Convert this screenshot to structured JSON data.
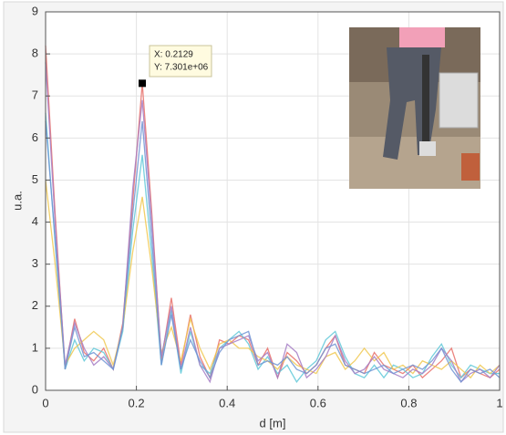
{
  "chart_data": {
    "type": "line",
    "xlabel": "d [m]",
    "ylabel": "u.a.",
    "x": [
      0,
      0.021,
      0.043,
      0.064,
      0.085,
      0.106,
      0.128,
      0.149,
      0.17,
      0.192,
      0.213,
      0.234,
      0.255,
      0.277,
      0.298,
      0.319,
      0.34,
      0.362,
      0.383,
      0.404,
      0.426,
      0.447,
      0.468,
      0.489,
      0.511,
      0.532,
      0.553,
      0.575,
      0.596,
      0.617,
      0.638,
      0.66,
      0.681,
      0.702,
      0.724,
      0.745,
      0.766,
      0.787,
      0.809,
      0.83,
      0.851,
      0.872,
      0.894,
      0.915,
      0.936,
      0.957,
      0.979,
      1.0
    ],
    "series": [
      {
        "color": "#e8706a",
        "values": [
          8.2,
          4.2,
          0.5,
          1.7,
          0.9,
          0.7,
          1.0,
          0.5,
          1.6,
          4.5,
          7.3,
          4.2,
          0.7,
          2.2,
          0.6,
          1.8,
          0.8,
          0.3,
          1.2,
          1.1,
          1.3,
          1.2,
          0.6,
          1.0,
          0.3,
          0.9,
          0.7,
          0.4,
          0.6,
          1.0,
          1.3,
          0.6,
          0.5,
          0.4,
          0.9,
          0.6,
          0.5,
          0.4,
          0.6,
          0.3,
          0.5,
          0.7,
          1.0,
          0.3,
          0.5,
          0.4,
          0.3,
          0.5
        ]
      },
      {
        "color": "#5fc8d8",
        "values": [
          6.6,
          3.5,
          0.5,
          1.2,
          0.7,
          1.0,
          0.9,
          0.5,
          1.4,
          3.8,
          5.6,
          3.2,
          0.6,
          1.9,
          0.4,
          1.4,
          0.6,
          0.4,
          1.0,
          1.2,
          1.4,
          1.1,
          0.5,
          0.8,
          0.4,
          0.6,
          0.2,
          0.5,
          0.7,
          1.2,
          1.4,
          0.8,
          0.4,
          0.3,
          0.6,
          0.3,
          0.6,
          0.5,
          0.3,
          0.4,
          0.8,
          1.1,
          0.6,
          0.3,
          0.6,
          0.5,
          0.4,
          0.4
        ]
      },
      {
        "color": "#f0c850",
        "values": [
          5.0,
          3.0,
          0.6,
          1.0,
          1.2,
          1.4,
          1.2,
          0.6,
          1.5,
          3.3,
          4.6,
          2.9,
          0.9,
          1.5,
          0.7,
          1.7,
          1.0,
          0.5,
          1.1,
          1.2,
          1.0,
          1.0,
          0.8,
          0.7,
          0.5,
          0.8,
          0.6,
          0.5,
          0.4,
          0.8,
          0.9,
          0.5,
          0.7,
          1.0,
          0.7,
          0.9,
          0.5,
          0.6,
          0.4,
          0.7,
          0.6,
          0.5,
          0.7,
          0.5,
          0.3,
          0.6,
          0.4,
          0.6
        ]
      },
      {
        "color": "#a47cc4",
        "values": [
          7.8,
          4.0,
          0.6,
          1.6,
          1.0,
          0.6,
          0.8,
          0.5,
          1.5,
          4.8,
          6.9,
          4.0,
          0.8,
          2.0,
          0.5,
          1.5,
          0.6,
          0.2,
          1.0,
          1.1,
          1.2,
          1.3,
          0.7,
          0.9,
          0.3,
          1.1,
          0.9,
          0.3,
          0.5,
          0.8,
          1.3,
          0.7,
          0.4,
          0.5,
          0.8,
          0.5,
          0.4,
          0.3,
          0.5,
          0.4,
          0.6,
          1.0,
          0.7,
          0.2,
          0.4,
          0.5,
          0.3,
          0.6
        ]
      },
      {
        "color": "#7094d4",
        "values": [
          6.4,
          3.6,
          0.5,
          1.5,
          0.8,
          0.9,
          0.7,
          0.5,
          1.5,
          4.2,
          6.4,
          3.6,
          0.6,
          1.8,
          0.5,
          1.2,
          0.7,
          0.3,
          0.9,
          1.2,
          1.3,
          1.4,
          0.6,
          0.7,
          0.6,
          0.8,
          0.5,
          0.4,
          0.6,
          1.0,
          1.1,
          0.6,
          0.5,
          0.4,
          0.5,
          0.6,
          0.4,
          0.5,
          0.6,
          0.5,
          0.7,
          1.0,
          0.5,
          0.2,
          0.5,
          0.4,
          0.5,
          0.3
        ]
      }
    ],
    "xlim": [
      0,
      1
    ],
    "xticks": [
      0,
      0.2,
      0.4,
      0.6,
      0.8,
      1
    ],
    "ylim": [
      0,
      9
    ],
    "yticks": [
      0,
      1,
      2,
      3,
      4,
      5,
      6,
      7,
      8,
      9
    ],
    "grid": true,
    "datatip": {
      "x": 0.2129,
      "y": 7.301,
      "label_x": "X: 0.2129",
      "label_y": "Y: 7.301e+06"
    }
  }
}
